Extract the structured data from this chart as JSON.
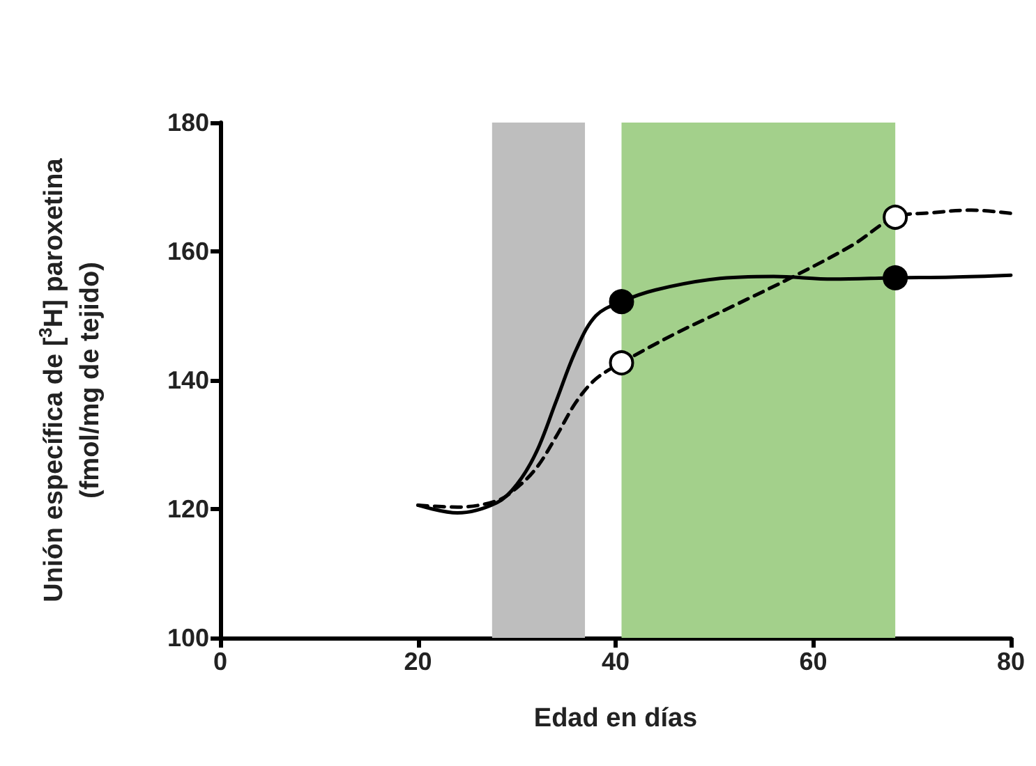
{
  "chart_data": {
    "type": "line",
    "xlabel": "Edad en días",
    "ylabel": "Unión específica de [$^{3}$H] paroxetina\n(fmol/mg de tejido)",
    "xlim": [
      0,
      80
    ],
    "xticks": [
      0,
      20,
      40,
      60,
      80
    ],
    "ylim": [
      100,
      180
    ],
    "yticks": [
      100,
      120,
      140,
      160,
      180
    ],
    "grid": false,
    "bands": [
      {
        "axis": "x",
        "from": 27.5,
        "to": 36.9,
        "color": "#bebebe"
      },
      {
        "axis": "x",
        "from": 40.6,
        "to": 68.3,
        "color": "#a3d08b"
      }
    ],
    "series": [
      {
        "color": "#000000",
        "line_style": "solid",
        "marker": "none",
        "x": [
          20,
          24,
          28,
          30,
          32,
          34,
          36,
          38,
          40.6,
          44,
          50,
          56,
          62,
          68.3,
          74,
          80
        ],
        "values": [
          120.6,
          119.4,
          121,
          123.8,
          128.9,
          136.8,
          144.7,
          150,
          152.2,
          154,
          155.7,
          156.1,
          155.7,
          155.9,
          156,
          156.3
        ]
      },
      {
        "color": "#000000",
        "line_style": "dashed",
        "marker": "none",
        "x": [
          20,
          24,
          28,
          30,
          32,
          34,
          36,
          38,
          40.6,
          46,
          52,
          58,
          64,
          68.3,
          72,
          76,
          80
        ],
        "values": [
          120.6,
          120.3,
          121.3,
          123.3,
          126.4,
          131.3,
          136.6,
          140.2,
          142.7,
          147.2,
          151.6,
          156.1,
          161,
          165.3,
          166,
          166.4,
          165.9
        ]
      },
      {
        "type": "scatter",
        "color": "#000000",
        "marker": "circle",
        "x": [
          40.6,
          68.3
        ],
        "values": [
          152.2,
          155.9
        ]
      },
      {
        "type": "scatter",
        "color": "#ffffff",
        "marker": "circle",
        "x": [
          40.6,
          68.3
        ],
        "values": [
          142.7,
          165.3
        ]
      }
    ]
  }
}
